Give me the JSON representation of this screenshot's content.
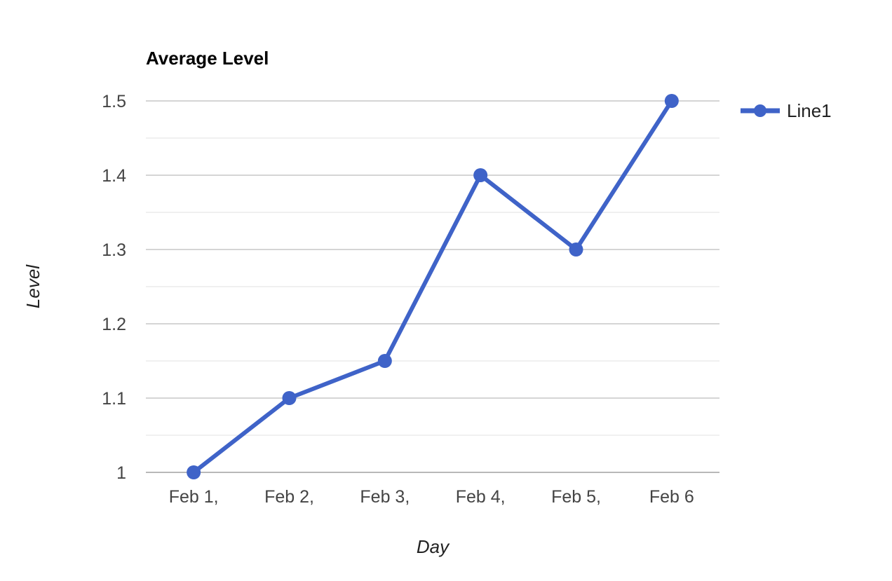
{
  "chart_data": {
    "type": "line",
    "title": "Average Level",
    "xlabel": "Day",
    "ylabel": "Level",
    "categories": [
      "Feb 1,",
      "Feb 2,",
      "Feb 3,",
      "Feb 4,",
      "Feb 5,",
      "Feb 6"
    ],
    "series": [
      {
        "name": "Line1",
        "values": [
          1.0,
          1.1,
          1.15,
          1.4,
          1.3,
          1.5
        ],
        "color": "#3f63c8"
      }
    ],
    "ylim": [
      1,
      1.5
    ],
    "yticks": [
      "1",
      "1.1",
      "1.2",
      "1.3",
      "1.4",
      "1.5"
    ],
    "grid": true,
    "legend_position": "right-top"
  }
}
